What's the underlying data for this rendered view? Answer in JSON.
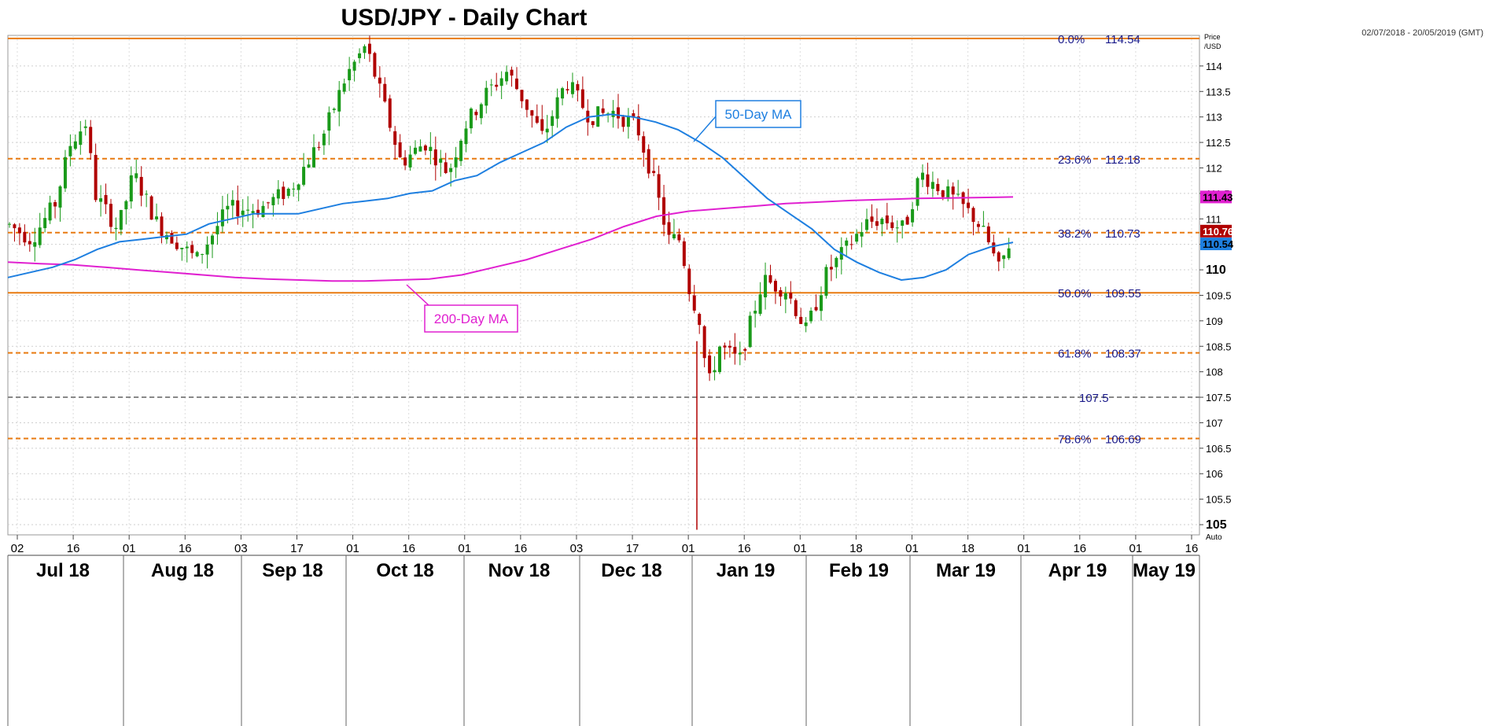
{
  "chart_data": {
    "type": "candlestick",
    "title": "USD/JPY - Daily Chart",
    "date_range_note": "02/07/2018 - 20/05/2019 (GMT)",
    "price_axis_label": [
      "Price",
      "/USD"
    ],
    "auto_label": "Auto",
    "y_ticks": [
      105,
      105.5,
      106,
      106.5,
      107,
      107.5,
      108,
      108.5,
      109,
      109.5,
      110,
      110.5,
      111,
      111.5,
      112,
      112.5,
      113,
      113.5,
      114
    ],
    "y_tick_labels": [
      "105",
      "105.5",
      "106",
      "106.5",
      "107",
      "107.5",
      "108",
      "108.5",
      "109",
      "109.5",
      "110",
      "110.5",
      "111",
      "111.5",
      "112",
      "112.5",
      "113",
      "113.5",
      "114"
    ],
    "ylim": [
      104.8,
      114.6
    ],
    "x_ticks": [
      "02",
      "16",
      "01",
      "16",
      "03",
      "17",
      "01",
      "16",
      "01",
      "16",
      "03",
      "17",
      "01",
      "16",
      "01",
      "18",
      "01",
      "18",
      "01",
      "16",
      "01",
      "16"
    ],
    "months": [
      "Jul 18",
      "Aug 18",
      "Sep 18",
      "Oct 18",
      "Nov 18",
      "Dec 18",
      "Jan 19",
      "Feb 19",
      "Mar 19",
      "Apr 19",
      "May 19"
    ],
    "fib_levels": [
      {
        "label": "0.0%",
        "value": 114.54,
        "value_text": "114.54"
      },
      {
        "label": "23.6%",
        "value": 112.18,
        "value_text": "112.18"
      },
      {
        "label": "38.2%",
        "value": 110.73,
        "value_text": "110.73"
      },
      {
        "label": "50.0%",
        "value": 109.55,
        "value_text": "109.55"
      },
      {
        "label": "61.8%",
        "value": 108.37,
        "value_text": "108.37"
      },
      {
        "label": "78.6%",
        "value": 106.69,
        "value_text": "106.69"
      }
    ],
    "support_level": {
      "value": 107.5,
      "value_text": "107.5"
    },
    "last_price": {
      "value": 110.76,
      "value_text": "110.76"
    },
    "ma_values": [
      {
        "name": "50-Day MA",
        "value": 110.54,
        "value_text": "110.54"
      },
      {
        "name": "200-Day MA",
        "value": 111.43,
        "value_text": "111.43"
      }
    ],
    "annotations": [
      "50-Day MA",
      "200-Day MA"
    ],
    "colors": {
      "up": "#1a9a1a",
      "down": "#b00000",
      "ma50": "#1e7fe0",
      "ma200": "#e020d0",
      "fib": "#e87a10",
      "support": "#888888",
      "last_price_box": "#b00000",
      "ma50_box": "#1e7fe0",
      "ma200_box": "#e020d0"
    },
    "ma50_series": [
      109.85,
      109.95,
      110.05,
      110.2,
      110.4,
      110.55,
      110.6,
      110.65,
      110.7,
      110.9,
      111.0,
      111.1,
      111.1,
      111.1,
      111.2,
      111.3,
      111.35,
      111.4,
      111.5,
      111.55,
      111.75,
      111.85,
      112.1,
      112.3,
      112.5,
      112.8,
      113.0,
      113.05,
      113.0,
      112.9,
      112.75,
      112.5,
      112.2,
      111.8,
      111.4,
      111.1,
      110.8,
      110.4,
      110.15,
      109.95,
      109.8,
      109.85,
      110.0,
      110.3,
      110.45,
      110.54
    ],
    "ma200_series": [
      110.15,
      110.12,
      110.1,
      110.05,
      110.0,
      109.95,
      109.9,
      109.85,
      109.82,
      109.8,
      109.78,
      109.78,
      109.8,
      109.82,
      109.9,
      110.05,
      110.2,
      110.4,
      110.6,
      110.85,
      111.05,
      111.15,
      111.2,
      111.25,
      111.3,
      111.33,
      111.36,
      111.38,
      111.4,
      111.41,
      111.42,
      111.43
    ]
  }
}
